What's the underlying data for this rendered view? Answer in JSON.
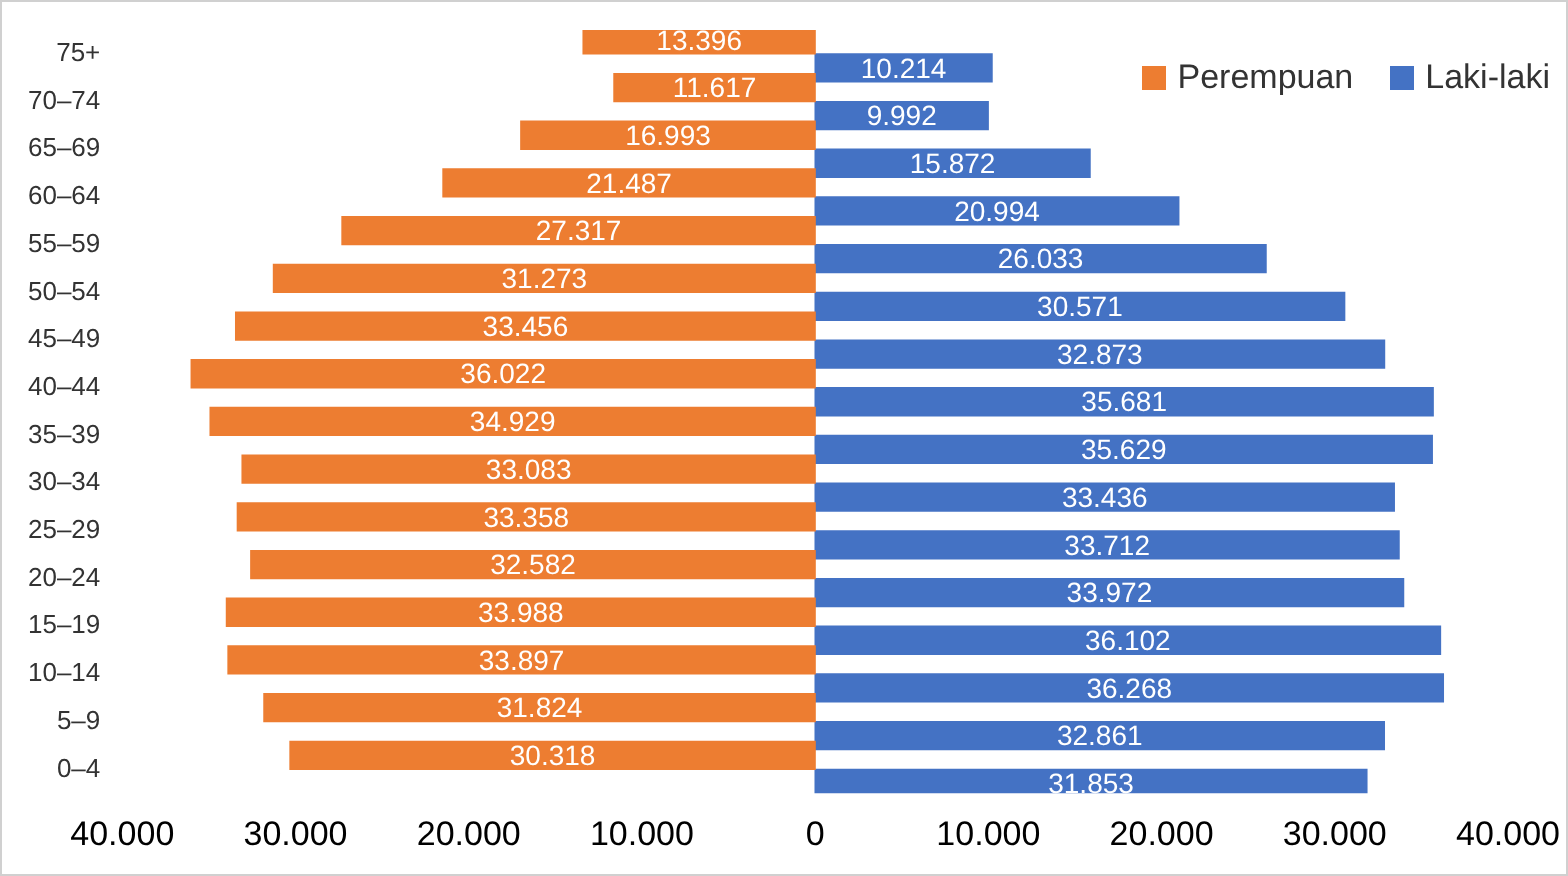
{
  "chart_data": {
    "type": "bar",
    "orientation": "horizontal",
    "categories": [
      "75+",
      "70–74",
      "65–69",
      "60–64",
      "55–59",
      "50–54",
      "45–49",
      "40–44",
      "35–39",
      "30–34",
      "25–29",
      "20–24",
      "15–19",
      "10–14",
      "5–9",
      "0–4"
    ],
    "series": [
      {
        "name": "Perempuan",
        "color": "#ed7d31",
        "values": [
          13396,
          11617,
          16993,
          21487,
          27317,
          31273,
          33456,
          36022,
          34929,
          33083,
          33358,
          32582,
          33988,
          33897,
          31824,
          30318
        ],
        "base": [
          -13396,
          -11617,
          -16993,
          -21487,
          -27317,
          -31273,
          -33456,
          -36022,
          -34929,
          -33083,
          -33358,
          -32582,
          -33988,
          -33897,
          -31824,
          -30318
        ],
        "value_labels": [
          "13.396",
          "11.617",
          "16.993",
          "21.487",
          "27.317",
          "31.273",
          "33.456",
          "36.022",
          "34.929",
          "33.083",
          "33.358",
          "32.582",
          "33.988",
          "33.897",
          "31.824",
          "30.318"
        ]
      },
      {
        "name": "Laki-laki",
        "color": "#4472c4",
        "values": [
          10214,
          9992,
          15872,
          20994,
          26033,
          30571,
          32873,
          35681,
          35629,
          33436,
          33712,
          33972,
          36102,
          36268,
          32861,
          31853
        ],
        "value_labels": [
          "10.214",
          "9.992",
          "15.872",
          "20.994",
          "26.033",
          "30.571",
          "32.873",
          "35.681",
          "35.629",
          "33.436",
          "33.712",
          "33.972",
          "36.102",
          "36.268",
          "32.861",
          "31.853"
        ]
      }
    ],
    "xlim": [
      -40000,
      40000
    ],
    "xticks": [
      {
        "value": -40000,
        "label": "40.000"
      },
      {
        "value": -30000,
        "label": "30.000"
      },
      {
        "value": -20000,
        "label": "20.000"
      },
      {
        "value": -10000,
        "label": "10.000"
      },
      0,
      {
        "value": 10000,
        "label": "10.000"
      },
      {
        "value": 20000,
        "label": "20.000"
      },
      {
        "value": 30000,
        "label": "30.000"
      },
      {
        "value": 40000,
        "label": "40.000"
      }
    ],
    "grid": false,
    "legend": "top right"
  }
}
